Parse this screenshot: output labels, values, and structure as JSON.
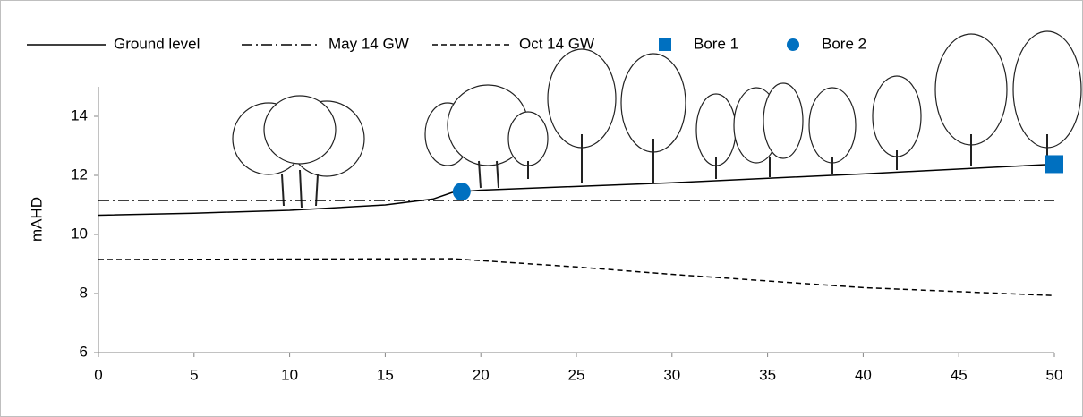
{
  "chart_data": {
    "type": "line",
    "y_label": "mAHD",
    "xlim": [
      0,
      50
    ],
    "ylim": [
      6,
      15
    ],
    "xticks": [
      0,
      5,
      10,
      15,
      20,
      25,
      30,
      35,
      40,
      45,
      50
    ],
    "yticks": [
      6,
      8,
      10,
      12,
      14
    ],
    "grid": false,
    "legend": "top",
    "series": [
      {
        "name": "Ground level",
        "color": "#000000",
        "dash": "solid",
        "x": [
          0,
          5,
          10,
          15,
          17.5,
          18.5,
          20,
          30,
          40,
          50
        ],
        "values": [
          10.65,
          10.72,
          10.82,
          11.0,
          11.2,
          11.42,
          11.5,
          11.75,
          12.05,
          12.38
        ]
      },
      {
        "name": "May 14 GW",
        "color": "#000000",
        "dash": "dashdot",
        "x": [
          0,
          50
        ],
        "values": [
          11.15,
          11.15
        ]
      },
      {
        "name": "Oct 14 GW",
        "color": "#000000",
        "dash": "dashed",
        "x": [
          0,
          18.5,
          25,
          30,
          40,
          50
        ],
        "values": [
          9.15,
          9.18,
          8.9,
          8.65,
          8.2,
          7.93
        ]
      },
      {
        "name": "Bore 1",
        "color": "#0070c0",
        "marker": "square",
        "x": [
          50
        ],
        "values": [
          12.38
        ]
      },
      {
        "name": "Bore 2",
        "color": "#0070c0",
        "marker": "circle",
        "x": [
          19
        ],
        "values": [
          11.45
        ]
      }
    ]
  }
}
